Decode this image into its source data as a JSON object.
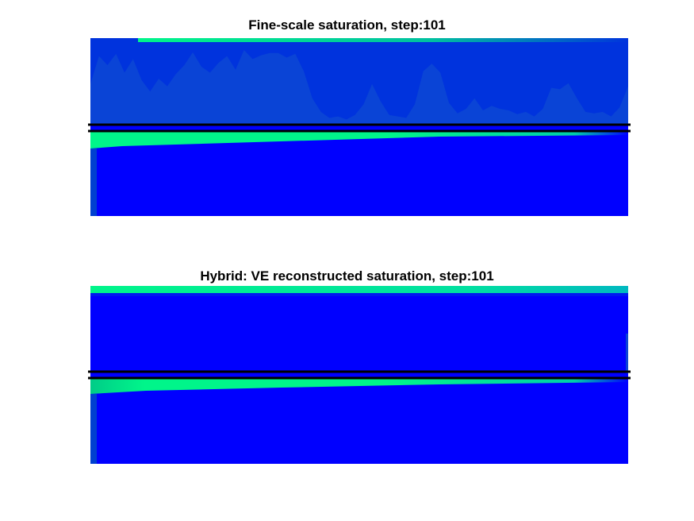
{
  "colors": {
    "background": "#0000ff",
    "plume": "#0033dd",
    "plume_light": "#0a44d6",
    "band": "#00f58a",
    "band_dark": "#00cc88",
    "lines": "#000000"
  },
  "chart_data": [
    {
      "type": "heatmap",
      "title": "Fine-scale saturation, step:101",
      "xlabel": "",
      "ylabel": "",
      "axes_visible": false,
      "colormap": "winter (blue to green)",
      "top_band": "thin green band along the top edge, fading to blue at the right",
      "upper_layer": "darker blue plume with irregular fingering profile in the upper half",
      "interface_lines": 2,
      "lower_band": "green saturation band just below the interface lines, thinning toward the right",
      "plume_profile": [
        0.55,
        0.92,
        0.8,
        0.95,
        0.7,
        0.88,
        0.6,
        0.45,
        0.62,
        0.52,
        0.68,
        0.8,
        0.97,
        0.78,
        0.7,
        0.83,
        0.92,
        0.74,
        1.0,
        0.88,
        0.93,
        0.96,
        0.96,
        0.9,
        0.95,
        0.72,
        0.36,
        0.18,
        0.1,
        0.12,
        0.08,
        0.14,
        0.28,
        0.55,
        0.32,
        0.14,
        0.12,
        0.1,
        0.28,
        0.72,
        0.82,
        0.7,
        0.3,
        0.16,
        0.22,
        0.36,
        0.2,
        0.26,
        0.22,
        0.2,
        0.15,
        0.18,
        0.12,
        0.22,
        0.5,
        0.48,
        0.56,
        0.36,
        0.18,
        0.16,
        0.18,
        0.12,
        0.24,
        0.52
      ]
    },
    {
      "type": "heatmap",
      "title": "Hybrid: VE reconstructed saturation, step:101",
      "xlabel": "",
      "ylabel": "",
      "axes_visible": false,
      "colormap": "winter (blue to green)",
      "top_band": "green band along the top edge",
      "upper_layer": "uniform blue",
      "interface_lines": 2,
      "lower_band": "green saturation band just below the interface lines, thinning toward the right"
    }
  ]
}
